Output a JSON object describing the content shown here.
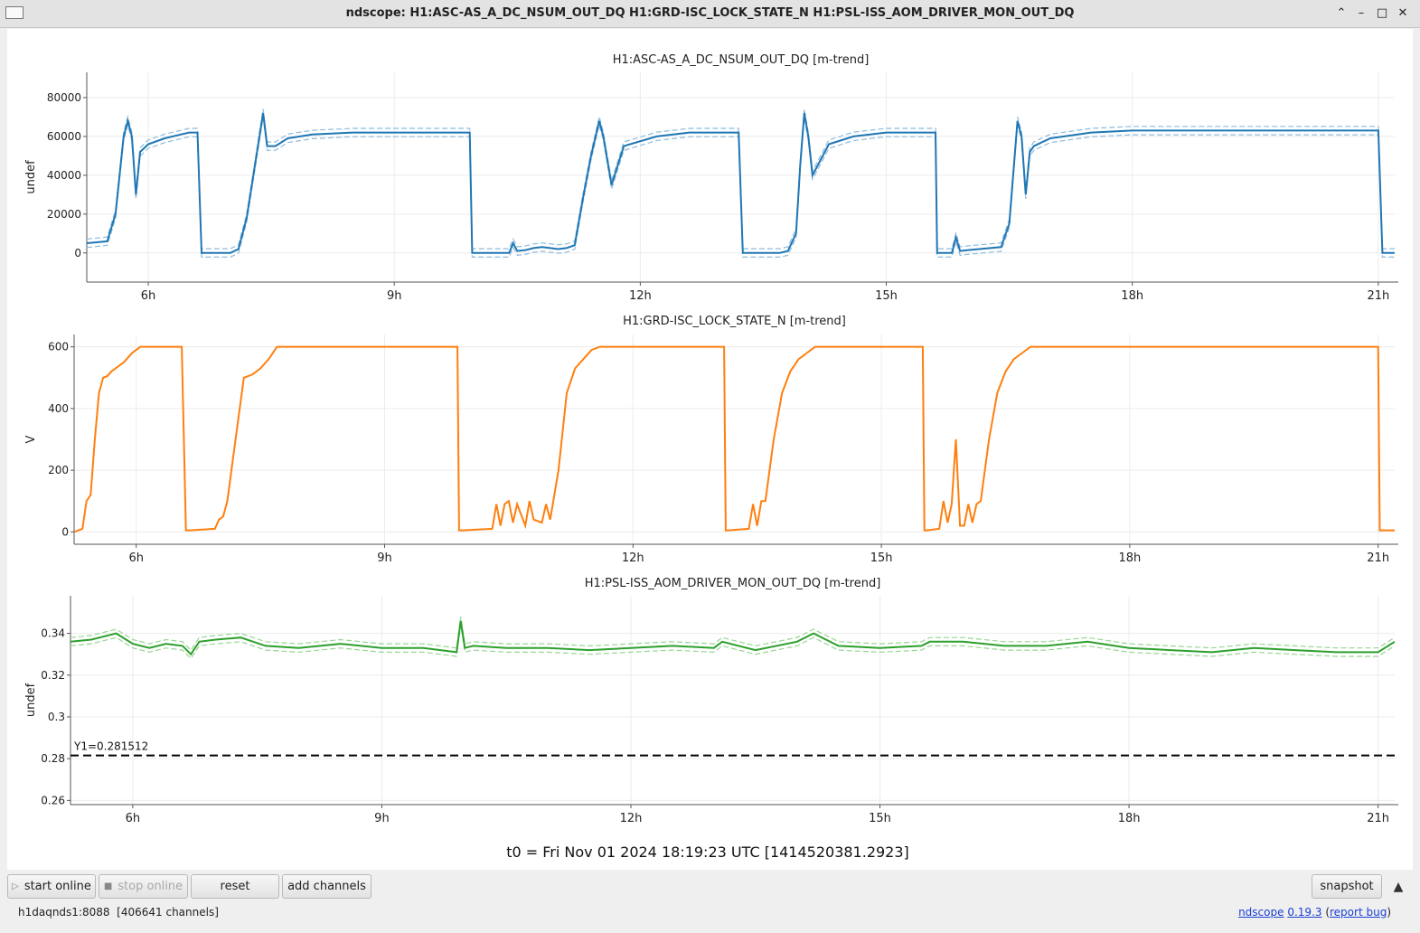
{
  "window": {
    "title": "ndscope: H1:ASC-AS_A_DC_NSUM_OUT_DQ H1:GRD-ISC_LOCK_STATE_N H1:PSL-ISS_AOM_DRIVER_MON_OUT_DQ",
    "buttons": {
      "up": "⌃",
      "minimize": "–",
      "maximize": "□",
      "close": "✕"
    }
  },
  "chart_data": [
    {
      "type": "line",
      "title": "H1:ASC-AS_A_DC_NSUM_OUT_DQ [m-trend]",
      "ylabel": "undef",
      "color": "#1f77b4",
      "minmax_color": "#8fbbdc",
      "xlim": [
        5.25,
        21.2
      ],
      "ylim": [
        -15000,
        93000
      ],
      "yticks": [
        0,
        20000,
        40000,
        60000,
        80000
      ],
      "ytick_labels": [
        "0",
        "20000",
        "40000",
        "60000",
        "80000"
      ],
      "xticks": [
        6,
        9,
        12,
        15,
        18,
        21
      ],
      "xtick_labels": [
        "6h",
        "9h",
        "12h",
        "15h",
        "18h",
        "21h"
      ],
      "series": [
        {
          "x": [
            5.25,
            5.5,
            5.6,
            5.7,
            5.75,
            5.8,
            5.85,
            5.9,
            6.0,
            6.2,
            6.4,
            6.5,
            6.55,
            6.6,
            6.65,
            7.0,
            7.1,
            7.2,
            7.3,
            7.4,
            7.45,
            7.55,
            7.7,
            8.0,
            8.5,
            9.0,
            9.5,
            9.92,
            9.95,
            10.0,
            10.4,
            10.45,
            10.5,
            10.6,
            10.7,
            10.8,
            11.0,
            11.1,
            11.2,
            11.3,
            11.4,
            11.5,
            11.55,
            11.65,
            11.8,
            12.2,
            12.6,
            13.0,
            13.2,
            13.25,
            13.3,
            13.7,
            13.8,
            13.9,
            13.95,
            14.0,
            14.05,
            14.1,
            14.3,
            14.6,
            15.0,
            15.3,
            15.6,
            15.62,
            15.65,
            15.8,
            15.85,
            15.9,
            16.0,
            16.4,
            16.5,
            16.6,
            16.65,
            16.7,
            16.75,
            16.8,
            17.0,
            17.5,
            18.0,
            19.0,
            20.0,
            21.0,
            21.05,
            21.1,
            21.2
          ],
          "y": [
            5000,
            6000,
            20000,
            60000,
            68000,
            60000,
            30000,
            52000,
            56000,
            59000,
            61000,
            62000,
            62000,
            62000,
            0,
            0,
            2000,
            18000,
            45000,
            72000,
            55000,
            55000,
            59000,
            61000,
            62000,
            62000,
            62000,
            62000,
            0,
            0,
            0,
            5000,
            1000,
            1500,
            2500,
            3000,
            2000,
            2500,
            4000,
            28000,
            50000,
            68000,
            60000,
            35000,
            55000,
            60000,
            62000,
            62000,
            62000,
            0,
            0,
            0,
            1000,
            10000,
            45000,
            72000,
            60000,
            40000,
            56000,
            60000,
            62000,
            62000,
            62000,
            0,
            0,
            0,
            8000,
            1000,
            1500,
            3000,
            15000,
            68000,
            60000,
            30000,
            52000,
            55000,
            59000,
            62000,
            63000,
            63000,
            63000,
            63000,
            0,
            0,
            0
          ]
        }
      ]
    },
    {
      "type": "line",
      "title": "H1:GRD-ISC_LOCK_STATE_N [m-trend]",
      "ylabel": "V",
      "color": "#ff7f0e",
      "xlim": [
        5.25,
        21.2
      ],
      "ylim": [
        -40,
        640
      ],
      "yticks": [
        0,
        200,
        400,
        600
      ],
      "ytick_labels": [
        "0",
        "200",
        "400",
        "600"
      ],
      "xticks": [
        6,
        9,
        12,
        15,
        18,
        21
      ],
      "xtick_labels": [
        "6h",
        "9h",
        "12h",
        "15h",
        "18h",
        "21h"
      ],
      "series": [
        {
          "x": [
            5.25,
            5.35,
            5.4,
            5.45,
            5.5,
            5.55,
            5.6,
            5.65,
            5.7,
            5.75,
            5.85,
            5.95,
            6.05,
            6.15,
            6.55,
            6.6,
            6.65,
            6.95,
            7.0,
            7.05,
            7.1,
            7.2,
            7.3,
            7.4,
            7.5,
            7.6,
            7.7,
            9.5,
            9.88,
            9.9,
            9.95,
            10.3,
            10.35,
            10.4,
            10.45,
            10.5,
            10.55,
            10.6,
            10.7,
            10.75,
            10.8,
            10.9,
            10.95,
            11.0,
            11.1,
            11.2,
            11.3,
            11.4,
            11.5,
            11.6,
            11.7,
            13.1,
            13.12,
            13.15,
            13.4,
            13.45,
            13.5,
            13.55,
            13.6,
            13.7,
            13.8,
            13.9,
            14.0,
            14.1,
            14.2,
            15.5,
            15.52,
            15.55,
            15.7,
            15.75,
            15.8,
            15.85,
            15.9,
            15.95,
            16.0,
            16.05,
            16.1,
            16.15,
            16.2,
            16.3,
            16.4,
            16.5,
            16.6,
            16.7,
            16.8,
            16.9,
            21.0,
            21.02,
            21.05,
            21.2
          ],
          "y": [
            0,
            10,
            100,
            120,
            300,
            450,
            500,
            505,
            520,
            530,
            550,
            580,
            600,
            600,
            600,
            5,
            5,
            10,
            40,
            50,
            100,
            300,
            500,
            510,
            530,
            560,
            600,
            600,
            600,
            5,
            5,
            10,
            90,
            20,
            90,
            100,
            30,
            90,
            20,
            100,
            40,
            30,
            90,
            40,
            200,
            450,
            530,
            560,
            590,
            600,
            600,
            600,
            5,
            5,
            10,
            90,
            20,
            100,
            100,
            300,
            450,
            520,
            560,
            580,
            600,
            600,
            5,
            5,
            10,
            100,
            30,
            90,
            300,
            20,
            20,
            90,
            30,
            90,
            100,
            300,
            450,
            520,
            560,
            580,
            600,
            600,
            600,
            5,
            5,
            5
          ]
        }
      ]
    },
    {
      "type": "line",
      "title": "H1:PSL-ISS_AOM_DRIVER_MON_OUT_DQ [m-trend]",
      "ylabel": "undef",
      "color": "#2ca02c",
      "minmax_color": "#98d594",
      "cursor_label": "Y1=0.281512",
      "cursor_y": 0.281512,
      "xlim": [
        5.25,
        21.2
      ],
      "ylim": [
        0.258,
        0.358
      ],
      "yticks": [
        0.26,
        0.28,
        0.3,
        0.32,
        0.34
      ],
      "ytick_labels": [
        "0.26",
        "0.28",
        "0.3",
        "0.32",
        "0.34"
      ],
      "xticks": [
        6,
        9,
        12,
        15,
        18,
        21
      ],
      "xtick_labels": [
        "6h",
        "9h",
        "12h",
        "15h",
        "18h",
        "21h"
      ],
      "series": [
        {
          "x": [
            5.25,
            5.5,
            5.8,
            6.0,
            6.2,
            6.4,
            6.6,
            6.7,
            6.8,
            7.0,
            7.3,
            7.6,
            8.0,
            8.5,
            9.0,
            9.5,
            9.9,
            9.95,
            10.0,
            10.1,
            10.5,
            11.0,
            11.5,
            12.0,
            12.5,
            13.0,
            13.1,
            13.5,
            14.0,
            14.2,
            14.5,
            15.0,
            15.5,
            15.6,
            16.0,
            16.5,
            17.0,
            17.5,
            18.0,
            18.5,
            19.0,
            19.5,
            20.0,
            20.5,
            21.0,
            21.2
          ],
          "y": [
            0.336,
            0.337,
            0.34,
            0.335,
            0.333,
            0.335,
            0.334,
            0.33,
            0.336,
            0.337,
            0.338,
            0.334,
            0.333,
            0.335,
            0.333,
            0.333,
            0.331,
            0.346,
            0.333,
            0.334,
            0.333,
            0.333,
            0.332,
            0.333,
            0.334,
            0.333,
            0.336,
            0.332,
            0.336,
            0.34,
            0.334,
            0.333,
            0.334,
            0.336,
            0.336,
            0.334,
            0.334,
            0.336,
            0.333,
            0.332,
            0.331,
            0.333,
            0.332,
            0.331,
            0.331,
            0.336
          ]
        }
      ]
    }
  ],
  "t0_label": "t0 = Fri Nov 01 2024 18:19:23 UTC [1414520381.2923]",
  "toolbar": {
    "start_online": "start online",
    "stop_online": "stop online",
    "reset": "reset",
    "add_channels": "add channels",
    "snapshot": "snapshot",
    "collapse": "▲"
  },
  "status": {
    "server": "h1daqnds1:8088",
    "channels": "[406641 channels]",
    "app": "ndscope",
    "version": "0.19.3",
    "report": "report bug"
  }
}
